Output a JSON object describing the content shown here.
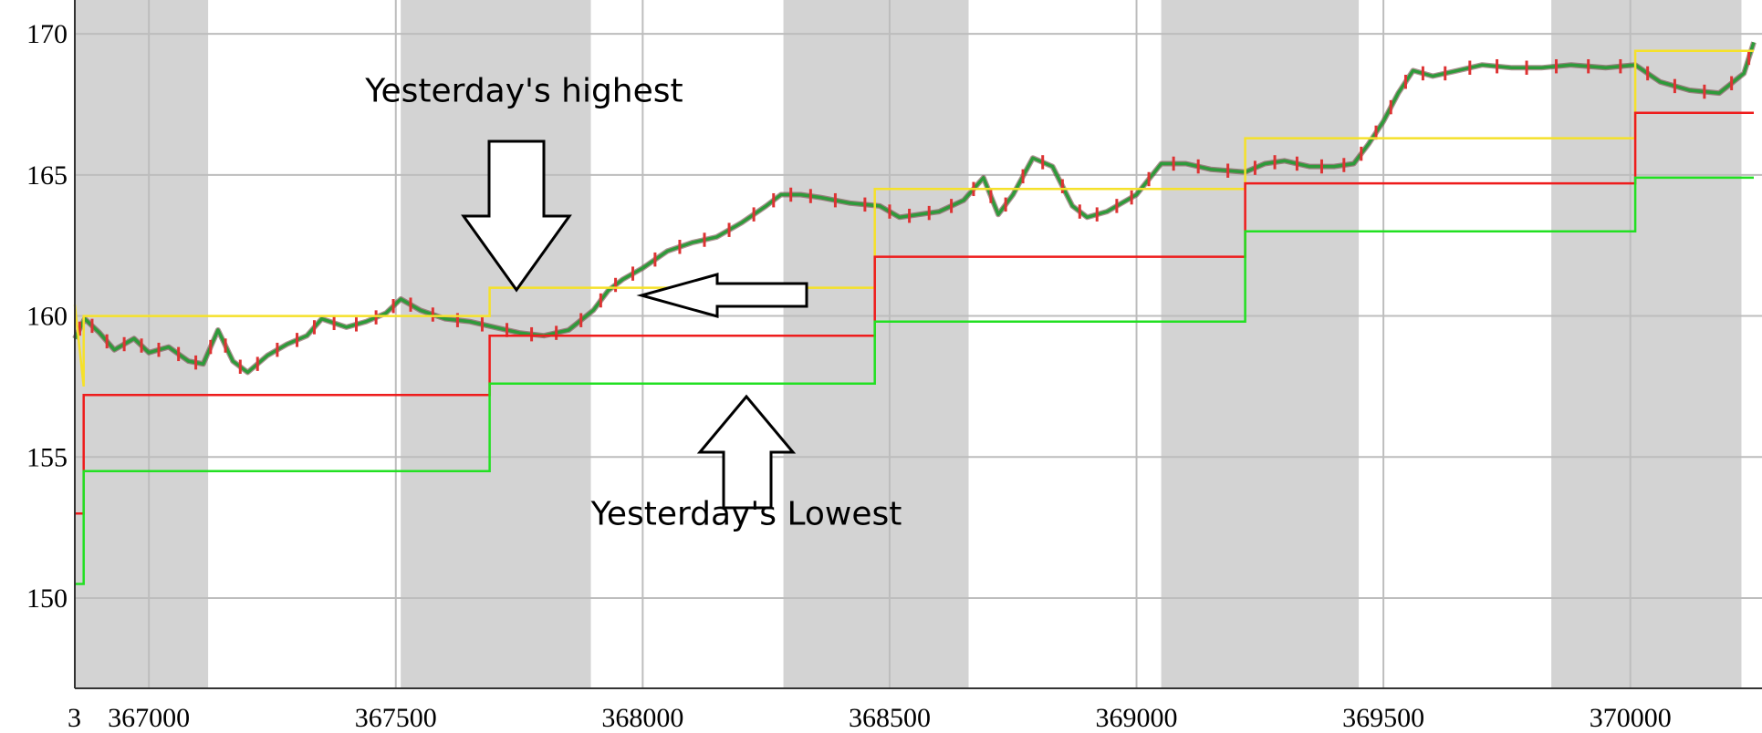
{
  "chart_data": {
    "type": "line",
    "xlim": [
      366850,
      370250
    ],
    "ylim": [
      146.8,
      171.2
    ],
    "x_ticks": [
      "367000",
      "367500",
      "368000",
      "368500",
      "369000",
      "369500",
      "370000"
    ],
    "x_tick_values": [
      367000,
      367500,
      368000,
      368500,
      369000,
      369500,
      370000
    ],
    "x_cut_label": "3",
    "y_ticks": [
      "150",
      "155",
      "160",
      "165",
      "170"
    ],
    "y_tick_values": [
      150,
      155,
      160,
      165,
      170
    ],
    "grid": true,
    "shaded_bands": [
      [
        366850,
        367120
      ],
      [
        367510,
        367895
      ],
      [
        368285,
        368660
      ],
      [
        369050,
        369450
      ],
      [
        369840,
        370225
      ]
    ],
    "day_boundaries": [
      366868,
      367690,
      368470,
      369220,
      370010,
      370250
    ],
    "series": [
      {
        "role": "yesterday-high",
        "color": "#f5e12a",
        "values": [
          [
            366850,
            160.4
          ],
          [
            366868,
            157.5
          ],
          [
            366868,
            160.0
          ],
          [
            367690,
            160.0
          ],
          [
            367690,
            161.0
          ],
          [
            368470,
            161.0
          ],
          [
            368470,
            164.5
          ],
          [
            369220,
            164.5
          ],
          [
            369220,
            166.3
          ],
          [
            370010,
            166.3
          ],
          [
            370010,
            169.4
          ],
          [
            370250,
            169.4
          ]
        ]
      },
      {
        "role": "yesterday-close",
        "color": "#ee1c1c",
        "values": [
          [
            366850,
            153.0
          ],
          [
            366868,
            153.0
          ],
          [
            366868,
            157.2
          ],
          [
            367690,
            157.2
          ],
          [
            367690,
            159.3
          ],
          [
            368470,
            159.3
          ],
          [
            368470,
            162.1
          ],
          [
            369220,
            162.1
          ],
          [
            369220,
            164.7
          ],
          [
            370010,
            164.7
          ],
          [
            370010,
            167.2
          ],
          [
            370250,
            167.2
          ]
        ]
      },
      {
        "role": "yesterday-low",
        "color": "#22e022",
        "values": [
          [
            366850,
            150.5
          ],
          [
            366868,
            150.5
          ],
          [
            366868,
            154.5
          ],
          [
            367690,
            154.5
          ],
          [
            367690,
            157.6
          ],
          [
            368470,
            157.6
          ],
          [
            368470,
            159.8
          ],
          [
            369220,
            159.8
          ],
          [
            369220,
            163.0
          ],
          [
            370010,
            163.0
          ],
          [
            370010,
            164.9
          ],
          [
            370250,
            164.9
          ]
        ]
      },
      {
        "role": "price",
        "color": "#2e7d32",
        "values": [
          [
            366850,
            159.2
          ],
          [
            366870,
            159.9
          ],
          [
            366900,
            159.4
          ],
          [
            366930,
            158.8
          ],
          [
            366970,
            159.2
          ],
          [
            367000,
            158.7
          ],
          [
            367040,
            158.9
          ],
          [
            367080,
            158.4
          ],
          [
            367110,
            158.3
          ],
          [
            367140,
            159.5
          ],
          [
            367170,
            158.4
          ],
          [
            367200,
            158.0
          ],
          [
            367240,
            158.6
          ],
          [
            367280,
            159.0
          ],
          [
            367320,
            159.3
          ],
          [
            367350,
            159.9
          ],
          [
            367400,
            159.6
          ],
          [
            367440,
            159.8
          ],
          [
            367480,
            160.1
          ],
          [
            367510,
            160.6
          ],
          [
            367550,
            160.2
          ],
          [
            367600,
            159.9
          ],
          [
            367650,
            159.8
          ],
          [
            367700,
            159.6
          ],
          [
            367750,
            159.4
          ],
          [
            367800,
            159.3
          ],
          [
            367850,
            159.5
          ],
          [
            367900,
            160.2
          ],
          [
            367930,
            160.9
          ],
          [
            367960,
            161.3
          ],
          [
            368000,
            161.7
          ],
          [
            368050,
            162.3
          ],
          [
            368100,
            162.6
          ],
          [
            368150,
            162.8
          ],
          [
            368200,
            163.3
          ],
          [
            368250,
            163.9
          ],
          [
            368280,
            164.3
          ],
          [
            368320,
            164.3
          ],
          [
            368360,
            164.2
          ],
          [
            368420,
            164.0
          ],
          [
            368480,
            163.9
          ],
          [
            368520,
            163.5
          ],
          [
            368560,
            163.6
          ],
          [
            368600,
            163.7
          ],
          [
            368650,
            164.1
          ],
          [
            368690,
            164.9
          ],
          [
            368720,
            163.6
          ],
          [
            368750,
            164.3
          ],
          [
            368790,
            165.6
          ],
          [
            368830,
            165.3
          ],
          [
            368870,
            163.9
          ],
          [
            368900,
            163.5
          ],
          [
            368940,
            163.7
          ],
          [
            368980,
            164.1
          ],
          [
            369000,
            164.3
          ],
          [
            369050,
            165.4
          ],
          [
            369100,
            165.4
          ],
          [
            369150,
            165.2
          ],
          [
            369220,
            165.1
          ],
          [
            369260,
            165.4
          ],
          [
            369300,
            165.5
          ],
          [
            369350,
            165.3
          ],
          [
            369400,
            165.3
          ],
          [
            369440,
            165.4
          ],
          [
            369470,
            166.1
          ],
          [
            369500,
            166.9
          ],
          [
            369530,
            167.9
          ],
          [
            369560,
            168.7
          ],
          [
            369600,
            168.5
          ],
          [
            369650,
            168.7
          ],
          [
            369700,
            168.9
          ],
          [
            369760,
            168.8
          ],
          [
            369820,
            168.8
          ],
          [
            369880,
            168.9
          ],
          [
            369950,
            168.8
          ],
          [
            370010,
            168.9
          ],
          [
            370060,
            168.3
          ],
          [
            370120,
            168.0
          ],
          [
            370180,
            167.9
          ],
          [
            370230,
            168.6
          ],
          [
            370250,
            169.7
          ]
        ]
      }
    ],
    "annotations": [
      {
        "text": "Yesterday's highest",
        "x": 367760,
        "y": 167.6
      },
      {
        "text": "Yesterday's Lowest",
        "x": 368210,
        "y": 152.6
      }
    ]
  }
}
